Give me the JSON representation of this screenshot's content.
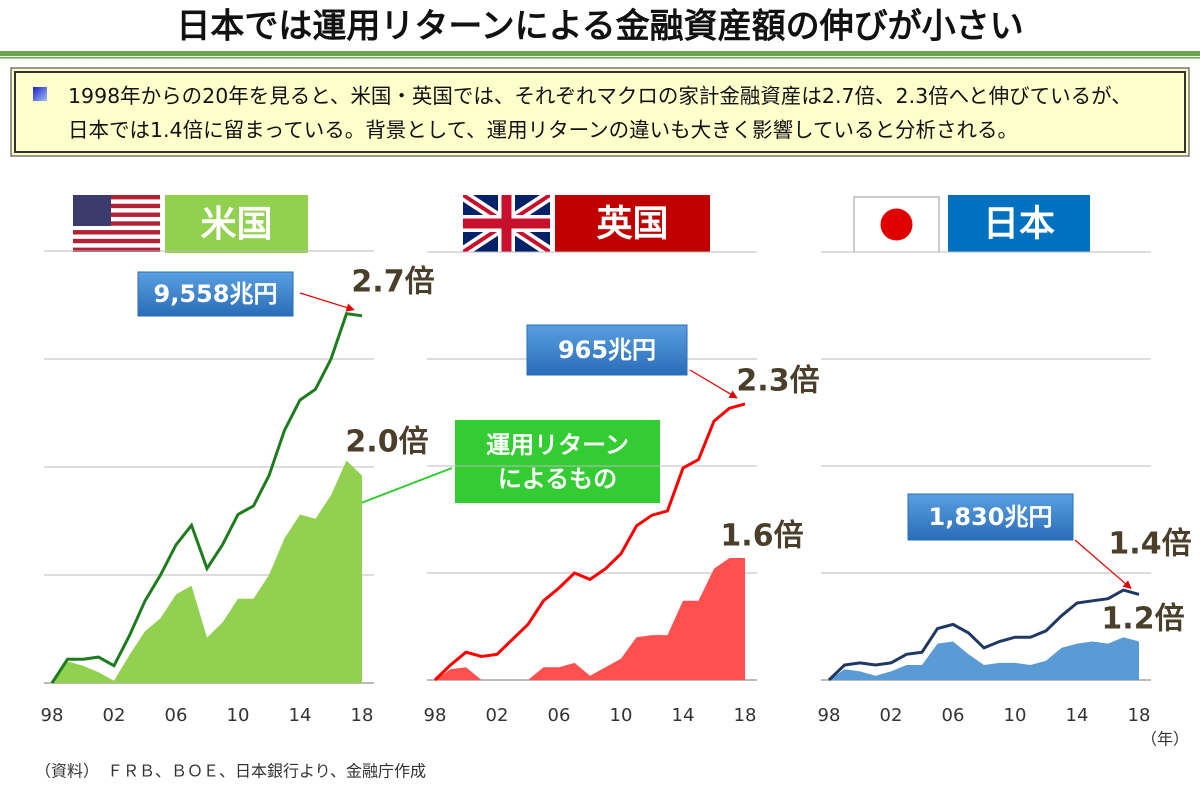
{
  "title": "日本では運用リターンによる金融資産額の伸びが小さい",
  "summary": [
    "1998年からの20年を見ると、米国・英国では、それぞれマクロの家計金融資産は2.7倍、2.3倍へと伸びているが、",
    "日本では1.4倍に留まっている。背景として、運用リターンの違いも大きく影響していると分析される。"
  ],
  "callout": "運用リターン\nによるもの",
  "x_unit": "（年）",
  "source": "（資料）　ＦＲＢ、ＢＯＥ、日本銀行より、金融庁作成",
  "chart_data": [
    {
      "type": "line",
      "title": "米国",
      "title_color": "#92d050",
      "annotation": "9,558兆円",
      "x": [
        1998,
        1999,
        2000,
        2001,
        2002,
        2003,
        2004,
        2005,
        2006,
        2007,
        2008,
        2009,
        2010,
        2011,
        2012,
        2013,
        2014,
        2015,
        2016,
        2017,
        2018
      ],
      "xlim": [
        1998,
        2018
      ],
      "ylim": [
        1,
        3
      ],
      "yticks": [
        1,
        1.5,
        2,
        2.5,
        3
      ],
      "grid": true,
      "xticks": [
        {
          "value": 1998,
          "label": "98"
        },
        {
          "value": 2002,
          "label": "02"
        },
        {
          "value": 2006,
          "label": "06"
        },
        {
          "value": 2010,
          "label": "10"
        },
        {
          "value": 2014,
          "label": "14"
        },
        {
          "value": 2018,
          "label": "18"
        }
      ],
      "series": [
        {
          "kind": "line",
          "color": "#1e7b1e",
          "values": [
            1.0,
            1.11,
            1.11,
            1.12,
            1.08,
            1.22,
            1.38,
            1.5,
            1.64,
            1.73,
            1.53,
            1.64,
            1.78,
            1.82,
            1.96,
            2.17,
            2.31,
            2.36,
            2.5,
            2.71,
            2.7
          ],
          "value_labels": [
            null,
            null,
            null,
            null,
            null,
            null,
            null,
            null,
            null,
            null,
            null,
            null,
            null,
            null,
            null,
            null,
            null,
            null,
            null,
            null,
            "2.7倍"
          ]
        },
        {
          "kind": "area",
          "color": "#92d050",
          "values": [
            1.0,
            1.1,
            1.08,
            1.05,
            1.01,
            1.13,
            1.24,
            1.3,
            1.41,
            1.45,
            1.21,
            1.28,
            1.39,
            1.39,
            1.5,
            1.67,
            1.78,
            1.76,
            1.87,
            2.03,
            1.96
          ],
          "value_labels": [
            null,
            null,
            null,
            null,
            null,
            null,
            null,
            null,
            null,
            null,
            null,
            null,
            null,
            null,
            null,
            null,
            null,
            null,
            null,
            null,
            "2.0倍"
          ]
        }
      ]
    },
    {
      "type": "line",
      "title": "英国",
      "title_color": "#c00000",
      "annotation": "965兆円",
      "x": [
        1998,
        1999,
        2000,
        2001,
        2002,
        2003,
        2004,
        2005,
        2006,
        2007,
        2008,
        2009,
        2010,
        2011,
        2012,
        2013,
        2014,
        2015,
        2016,
        2017,
        2018
      ],
      "xlim": [
        1998,
        2018
      ],
      "ylim": [
        1,
        3
      ],
      "yticks": [
        1,
        1.5,
        2,
        2.5,
        3
      ],
      "grid": true,
      "xticks": [
        {
          "value": 1998,
          "label": "98"
        },
        {
          "value": 2002,
          "label": "02"
        },
        {
          "value": 2006,
          "label": "06"
        },
        {
          "value": 2010,
          "label": "10"
        },
        {
          "value": 2014,
          "label": "14"
        },
        {
          "value": 2018,
          "label": "18"
        }
      ],
      "series": [
        {
          "kind": "line",
          "color": "#ff0000",
          "values": [
            1.0,
            1.07,
            1.13,
            1.11,
            1.12,
            1.19,
            1.26,
            1.37,
            1.43,
            1.5,
            1.47,
            1.52,
            1.59,
            1.72,
            1.77,
            1.79,
            1.99,
            2.03,
            2.21,
            2.27,
            2.29
          ],
          "value_labels": [
            null,
            null,
            null,
            null,
            null,
            null,
            null,
            null,
            null,
            null,
            null,
            null,
            null,
            null,
            null,
            null,
            null,
            null,
            null,
            null,
            "2.3倍"
          ]
        },
        {
          "kind": "area",
          "color": "#ff5050",
          "values": [
            1.0,
            1.05,
            1.06,
            1.0,
            1.0,
            1.0,
            1.0,
            1.06,
            1.06,
            1.08,
            1.02,
            1.06,
            1.1,
            1.2,
            1.21,
            1.21,
            1.37,
            1.37,
            1.52,
            1.57,
            1.57
          ],
          "value_labels": [
            null,
            null,
            null,
            null,
            null,
            null,
            null,
            null,
            null,
            null,
            null,
            null,
            null,
            null,
            null,
            null,
            null,
            null,
            null,
            null,
            "1.6倍"
          ]
        }
      ]
    },
    {
      "type": "line",
      "title": "日本",
      "title_color": "#0070c0",
      "annotation": "1,830兆円",
      "x": [
        1998,
        1999,
        2000,
        2001,
        2002,
        2003,
        2004,
        2005,
        2006,
        2007,
        2008,
        2009,
        2010,
        2011,
        2012,
        2013,
        2014,
        2015,
        2016,
        2017,
        2018
      ],
      "xlim": [
        1998,
        2018
      ],
      "ylim": [
        1,
        3
      ],
      "yticks": [
        1,
        1.5,
        2,
        2.5,
        3
      ],
      "grid": true,
      "xticks": [
        {
          "value": 1998,
          "label": "98"
        },
        {
          "value": 2002,
          "label": "02"
        },
        {
          "value": 2006,
          "label": "06"
        },
        {
          "value": 2010,
          "label": "10"
        },
        {
          "value": 2014,
          "label": "14"
        },
        {
          "value": 2018,
          "label": "18"
        }
      ],
      "series": [
        {
          "kind": "line",
          "color": "#1f3864",
          "values": [
            1.0,
            1.07,
            1.08,
            1.07,
            1.08,
            1.12,
            1.13,
            1.24,
            1.26,
            1.22,
            1.15,
            1.18,
            1.2,
            1.2,
            1.23,
            1.3,
            1.36,
            1.37,
            1.38,
            1.42,
            1.4
          ],
          "value_labels": [
            null,
            null,
            null,
            null,
            null,
            null,
            null,
            null,
            null,
            null,
            null,
            null,
            null,
            null,
            null,
            null,
            null,
            null,
            null,
            null,
            "1.4倍"
          ]
        },
        {
          "kind": "area",
          "color": "#5b9bd5",
          "values": [
            1.0,
            1.05,
            1.04,
            1.02,
            1.04,
            1.07,
            1.07,
            1.17,
            1.18,
            1.12,
            1.07,
            1.08,
            1.08,
            1.07,
            1.09,
            1.15,
            1.17,
            1.18,
            1.17,
            1.2,
            1.18
          ],
          "value_labels": [
            null,
            null,
            null,
            null,
            null,
            null,
            null,
            null,
            null,
            null,
            null,
            null,
            null,
            null,
            null,
            null,
            null,
            null,
            null,
            null,
            "1.2倍"
          ]
        }
      ]
    }
  ]
}
